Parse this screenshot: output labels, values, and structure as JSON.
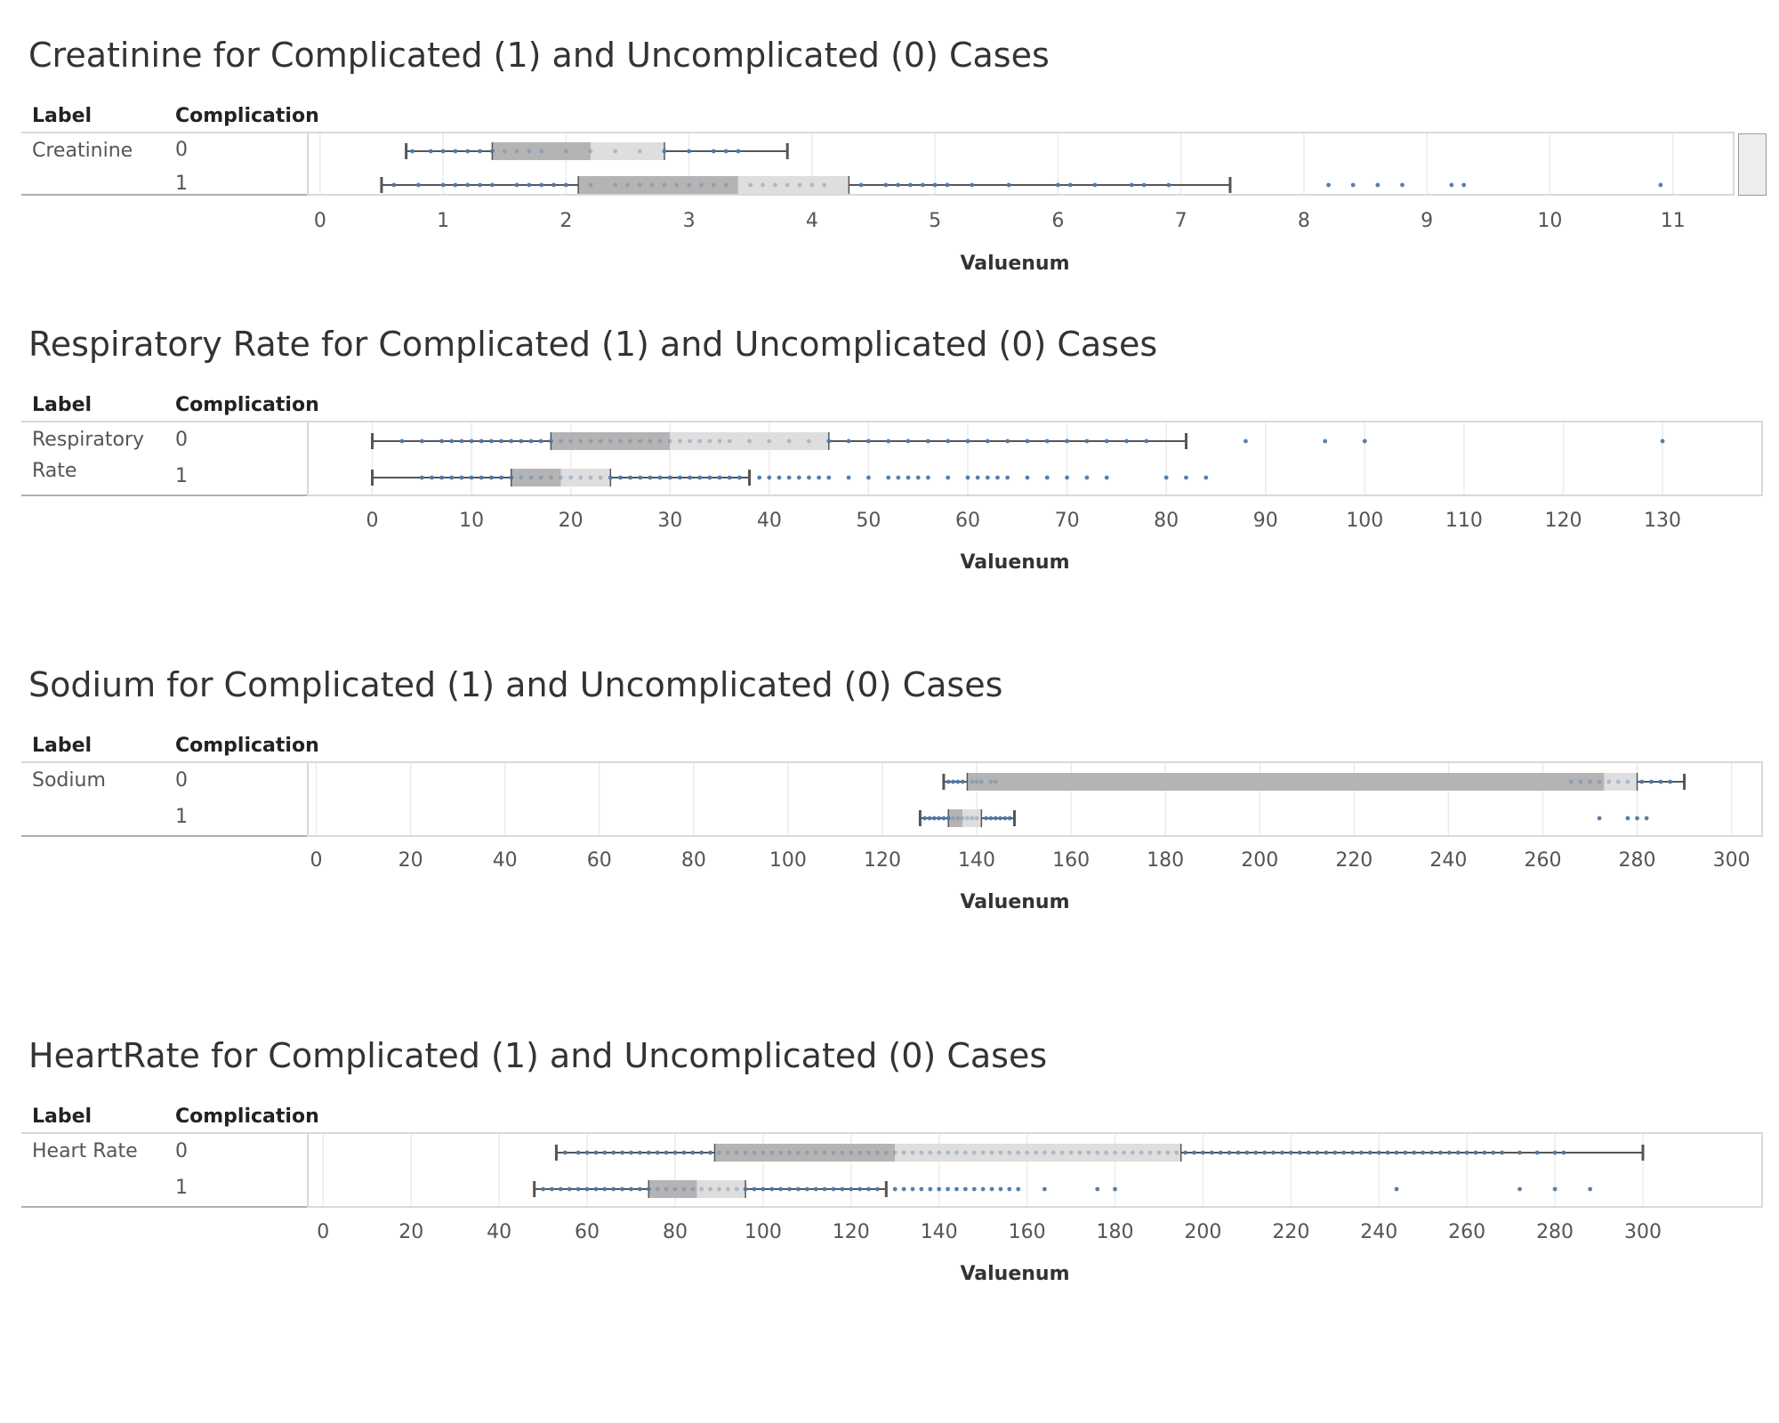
{
  "colors": {
    "box_dark": "#b4b4b4",
    "box_light": "#dedede",
    "dot": "#4e79a7",
    "whisker": "#555555",
    "grid": "#ebebeb"
  },
  "headers": {
    "label": "Label",
    "complication": "Complication",
    "xlabel": "Valuenum"
  },
  "chart_data": [
    {
      "type": "boxplot",
      "title": "Creatinine for Complicated (1) and Uncomplicated (0) Cases",
      "label": "Creatinine",
      "xlabel": "Valuenum",
      "xlim": [
        -0.1,
        11.4
      ],
      "ticks": [
        "0",
        "1",
        "2",
        "3",
        "4",
        "5",
        "6",
        "7",
        "8",
        "9",
        "10",
        "11"
      ],
      "grid": true,
      "series": [
        {
          "name": "0",
          "whisker_low": 0.7,
          "q1": 1.4,
          "median": 2.2,
          "q3": 2.8,
          "whisker_high": 3.8,
          "points": [
            0.75,
            0.9,
            1.0,
            1.1,
            1.2,
            1.3,
            1.4,
            1.5,
            1.6,
            1.7,
            1.8,
            2.0,
            2.2,
            2.4,
            2.6,
            2.8,
            3.0,
            3.2,
            3.3,
            3.4
          ]
        },
        {
          "name": "1",
          "whisker_low": 0.5,
          "q1": 2.1,
          "median": 3.4,
          "q3": 4.3,
          "whisker_high": 7.4,
          "points": [
            0.6,
            0.8,
            1.0,
            1.1,
            1.2,
            1.3,
            1.4,
            1.6,
            1.7,
            1.8,
            1.9,
            2.0,
            2.2,
            2.4,
            2.5,
            2.6,
            2.7,
            2.8,
            2.9,
            3.0,
            3.1,
            3.2,
            3.3,
            3.5,
            3.6,
            3.7,
            3.8,
            3.9,
            4.0,
            4.1,
            4.4,
            4.6,
            4.7,
            4.8,
            4.9,
            5.0,
            5.1,
            5.3,
            5.6,
            6.0,
            6.1,
            6.3,
            6.6,
            6.7,
            6.9,
            8.2,
            8.4,
            8.6,
            8.8,
            9.2,
            9.3,
            10.9
          ]
        }
      ]
    },
    {
      "type": "boxplot",
      "title": "Respiratory Rate for Complicated (1) and Uncomplicated (0) Cases",
      "label": "Respiratory Rate",
      "xlabel": "Valuenum",
      "xlim": [
        -6.5,
        136
      ],
      "ticks": [
        "0",
        "10",
        "20",
        "30",
        "40",
        "50",
        "60",
        "70",
        "80",
        "90",
        "100",
        "110",
        "120",
        "130"
      ],
      "grid": true,
      "series": [
        {
          "name": "0",
          "whisker_low": 0,
          "q1": 18,
          "median": 30,
          "q3": 46,
          "whisker_high": 82,
          "points": [
            3,
            5,
            7,
            8,
            9,
            10,
            11,
            12,
            13,
            14,
            15,
            16,
            17,
            18,
            19,
            20,
            21,
            22,
            23,
            24,
            25,
            26,
            27,
            28,
            29,
            30,
            31,
            32,
            33,
            34,
            35,
            36,
            38,
            40,
            42,
            44,
            46,
            48,
            50,
            52,
            54,
            56,
            58,
            60,
            62,
            64,
            66,
            68,
            70,
            72,
            74,
            76,
            78,
            88,
            96,
            100,
            130
          ]
        },
        {
          "name": "1",
          "whisker_low": 0,
          "q1": 14,
          "median": 19,
          "q3": 24,
          "whisker_high": 38,
          "points": [
            5,
            6,
            7,
            8,
            9,
            10,
            11,
            12,
            13,
            14,
            15,
            16,
            17,
            18,
            19,
            20,
            21,
            22,
            23,
            24,
            25,
            26,
            27,
            28,
            29,
            30,
            31,
            32,
            33,
            34,
            35,
            36,
            37,
            39,
            40,
            41,
            42,
            43,
            44,
            45,
            46,
            48,
            50,
            52,
            53,
            54,
            55,
            56,
            58,
            60,
            61,
            62,
            63,
            64,
            66,
            68,
            70,
            72,
            74,
            80,
            82,
            84
          ]
        }
      ]
    },
    {
      "type": "boxplot",
      "title": "Sodium for Complicated (1) and Uncomplicated (0) Cases",
      "label": "Sodium",
      "xlabel": "Valuenum",
      "xlim": [
        -1.8,
        298
      ],
      "ticks": [
        "0",
        "20",
        "40",
        "60",
        "80",
        "100",
        "120",
        "140",
        "160",
        "180",
        "200",
        "220",
        "240",
        "260",
        "280",
        "300"
      ],
      "grid": true,
      "series": [
        {
          "name": "0",
          "whisker_low": 133,
          "q1": 138,
          "median": 273,
          "q3": 280,
          "whisker_high": 290,
          "points": [
            134,
            135,
            136,
            137,
            139,
            140,
            141,
            143,
            144,
            266,
            268,
            270,
            272,
            274,
            276,
            278,
            281,
            283,
            285,
            287
          ]
        },
        {
          "name": "1",
          "whisker_low": 128,
          "q1": 134,
          "median": 137,
          "q3": 141,
          "whisker_high": 148,
          "points": [
            129,
            130,
            131,
            132,
            133,
            134,
            135,
            136,
            137,
            138,
            139,
            140,
            142,
            143,
            144,
            145,
            146,
            147,
            272,
            278,
            280,
            282
          ]
        }
      ]
    },
    {
      "type": "boxplot",
      "title": "HeartRate for Complicated (1) and Uncomplicated (0) Cases",
      "label": "Heart Rate",
      "xlabel": "Valuenum",
      "xlim": [
        -3.5,
        318
      ],
      "ticks": [
        "0",
        "20",
        "40",
        "60",
        "80",
        "100",
        "120",
        "140",
        "160",
        "180",
        "200",
        "220",
        "240",
        "260",
        "280",
        "300"
      ],
      "grid": true,
      "series": [
        {
          "name": "0",
          "whisker_low": 53,
          "q1": 89,
          "median": 130,
          "q3": 195,
          "whisker_high": 300,
          "points": [
            55,
            58,
            60,
            62,
            64,
            66,
            68,
            70,
            72,
            74,
            76,
            78,
            80,
            82,
            84,
            86,
            88,
            90,
            92,
            94,
            96,
            98,
            100,
            102,
            104,
            106,
            108,
            110,
            112,
            114,
            116,
            118,
            120,
            122,
            124,
            126,
            128,
            130,
            132,
            134,
            136,
            138,
            140,
            142,
            144,
            146,
            148,
            150,
            152,
            154,
            156,
            158,
            160,
            162,
            164,
            166,
            168,
            170,
            172,
            174,
            176,
            178,
            180,
            182,
            184,
            186,
            188,
            190,
            192,
            194,
            196,
            198,
            200,
            202,
            204,
            206,
            208,
            210,
            212,
            214,
            216,
            218,
            220,
            222,
            224,
            226,
            228,
            230,
            232,
            234,
            236,
            238,
            240,
            242,
            244,
            246,
            248,
            250,
            252,
            254,
            256,
            258,
            260,
            262,
            264,
            266,
            268,
            272,
            276,
            280,
            282
          ]
        },
        {
          "name": "1",
          "whisker_low": 48,
          "q1": 74,
          "median": 85,
          "q3": 96,
          "whisker_high": 128,
          "points": [
            50,
            52,
            54,
            56,
            58,
            60,
            62,
            64,
            66,
            68,
            70,
            72,
            74,
            76,
            78,
            80,
            82,
            84,
            86,
            88,
            90,
            92,
            94,
            96,
            98,
            100,
            102,
            104,
            106,
            108,
            110,
            112,
            114,
            116,
            118,
            120,
            122,
            124,
            126,
            130,
            132,
            134,
            136,
            138,
            140,
            142,
            144,
            146,
            148,
            150,
            152,
            154,
            156,
            158,
            164,
            176,
            180,
            244,
            272,
            280,
            288
          ]
        }
      ]
    }
  ]
}
